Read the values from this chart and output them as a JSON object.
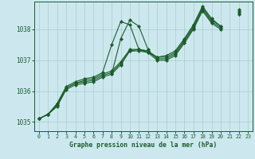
{
  "title": "Graphe pression niveau de la mer (hPa)",
  "bg_color": "#cce8ee",
  "grid_color": "#aacccc",
  "line_color": "#1a5c2a",
  "marker_color": "#1a5c2a",
  "xlim": [
    -0.5,
    23.5
  ],
  "ylim": [
    1034.7,
    1038.9
  ],
  "yticks": [
    1035,
    1036,
    1037,
    1038
  ],
  "xticks": [
    0,
    1,
    2,
    3,
    4,
    5,
    6,
    7,
    8,
    9,
    10,
    11,
    12,
    13,
    14,
    15,
    16,
    17,
    18,
    19,
    20,
    21,
    22,
    23
  ],
  "series": [
    [
      1035.1,
      1035.25,
      1035.6,
      1036.15,
      1036.3,
      1036.4,
      1036.45,
      1036.6,
      1037.5,
      1038.25,
      1038.15,
      1037.35,
      1037.25,
      1037.1,
      1037.15,
      1037.3,
      1037.7,
      1038.15,
      1038.75,
      1038.35,
      1038.1,
      null,
      1038.65
    ],
    [
      1035.1,
      1035.25,
      1035.55,
      1036.1,
      1036.25,
      1036.35,
      1036.4,
      1036.55,
      1036.65,
      1036.95,
      1037.35,
      1037.35,
      1037.3,
      1037.1,
      1037.1,
      1037.25,
      1037.65,
      1038.1,
      1038.7,
      1038.3,
      1038.1,
      null,
      1038.6
    ],
    [
      1035.1,
      1035.25,
      1035.55,
      1036.1,
      1036.25,
      1036.3,
      1036.35,
      1036.5,
      1036.6,
      1036.9,
      1037.3,
      1037.35,
      1037.3,
      1037.05,
      1037.05,
      1037.2,
      1037.6,
      1038.05,
      1038.65,
      1038.25,
      1038.05,
      null,
      1038.55
    ],
    [
      1035.1,
      1035.25,
      1035.5,
      1036.05,
      1036.2,
      1036.25,
      1036.3,
      1036.45,
      1036.55,
      1036.85,
      1037.3,
      1037.3,
      1037.25,
      1037.0,
      1037.0,
      1037.15,
      1037.55,
      1038.0,
      1038.6,
      1038.2,
      1038.0,
      null,
      1038.5
    ]
  ],
  "series_spike": [
    1035.1,
    null,
    null,
    null,
    null,
    null,
    null,
    null,
    1036.55,
    1037.7,
    1038.3,
    1038.1,
    1037.35,
    null,
    null,
    null,
    null,
    null,
    null,
    null,
    null,
    null,
    null,
    null
  ]
}
